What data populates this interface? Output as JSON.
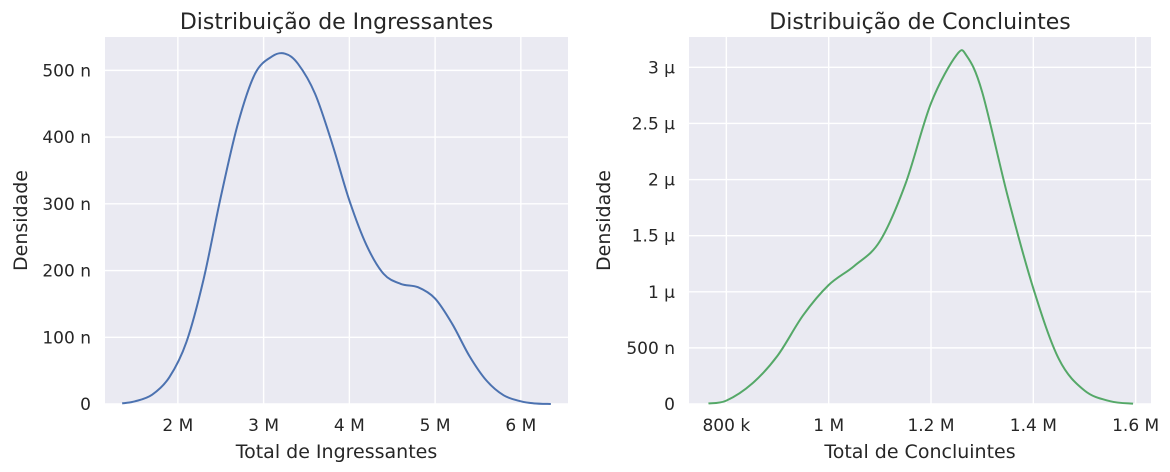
{
  "chart_data": [
    {
      "type": "area",
      "subtype": "kde",
      "title": "Distribuição de Ingressantes",
      "xlabel": "Total de Ingressantes",
      "ylabel": "Densidade",
      "color": "#4c72b0",
      "xlim": [
        1150000,
        6550000
      ],
      "ylim": [
        0,
        5.5e-07
      ],
      "xticks": [
        2000000,
        3000000,
        4000000,
        5000000,
        6000000
      ],
      "xtick_labels": [
        "2 M",
        "3 M",
        "4 M",
        "5 M",
        "6 M"
      ],
      "yticks": [
        0,
        1e-07,
        2e-07,
        3e-07,
        4e-07,
        5e-07
      ],
      "ytick_labels": [
        "0",
        "100 n",
        "200 n",
        "300 n",
        "400 n",
        "500 n"
      ],
      "x": [
        1350000,
        1500000,
        1700000,
        1900000,
        2100000,
        2300000,
        2500000,
        2700000,
        2900000,
        3100000,
        3250000,
        3400000,
        3600000,
        3800000,
        4000000,
        4200000,
        4400000,
        4600000,
        4800000,
        5000000,
        5200000,
        5400000,
        5600000,
        5800000,
        6000000,
        6150000,
        6350000
      ],
      "y": [
        1e-09,
        4e-09,
        1.4e-08,
        4e-08,
        9.3e-08,
        1.87e-07,
        3.1e-07,
        4.2e-07,
        4.95e-07,
        5.21e-07,
        5.25e-07,
        5.1e-07,
        4.65e-07,
        3.9e-07,
        3.05e-07,
        2.38e-07,
        1.95e-07,
        1.8e-07,
        1.75e-07,
        1.58e-07,
        1.2e-07,
        7.2e-08,
        3.5e-08,
        1.3e-08,
        4e-09,
        1e-09,
        0
      ]
    },
    {
      "type": "area",
      "subtype": "kde",
      "title": "Distribuição de Concluintes",
      "xlabel": "Total de Concluintes",
      "ylabel": "Densidade",
      "color": "#55a868",
      "xlim": [
        727000,
        1630000
      ],
      "ylim": [
        0,
        3.27e-06
      ],
      "xticks": [
        800000,
        1000000,
        1200000,
        1400000,
        1600000
      ],
      "xtick_labels": [
        "800 k",
        "1 M",
        "1.2 M",
        "1.4 M",
        "1.6 M"
      ],
      "yticks": [
        0,
        5e-07,
        1e-06,
        1.5e-06,
        2e-06,
        2.5e-06,
        3e-06
      ],
      "ytick_labels": [
        "0",
        "500 n",
        "1 μ",
        "1.5 μ",
        "2 μ",
        "2.5 μ",
        "3 μ"
      ],
      "x": [
        765000,
        800000,
        850000,
        900000,
        950000,
        1000000,
        1050000,
        1100000,
        1150000,
        1200000,
        1250000,
        1270000,
        1300000,
        1350000,
        1400000,
        1450000,
        1500000,
        1550000,
        1595000
      ],
      "y": [
        5e-09,
        3e-08,
        1.8e-07,
        4.3e-07,
        7.9e-07,
        1.06e-06,
        1.23e-06,
        1.45e-06,
        1.96e-06,
        2.68e-06,
        3.11e-06,
        3.1e-06,
        2.78e-06,
        1.85e-06,
        1.03e-06,
        4e-07,
        1.2e-07,
        2.5e-08,
        3e-09
      ]
    }
  ]
}
